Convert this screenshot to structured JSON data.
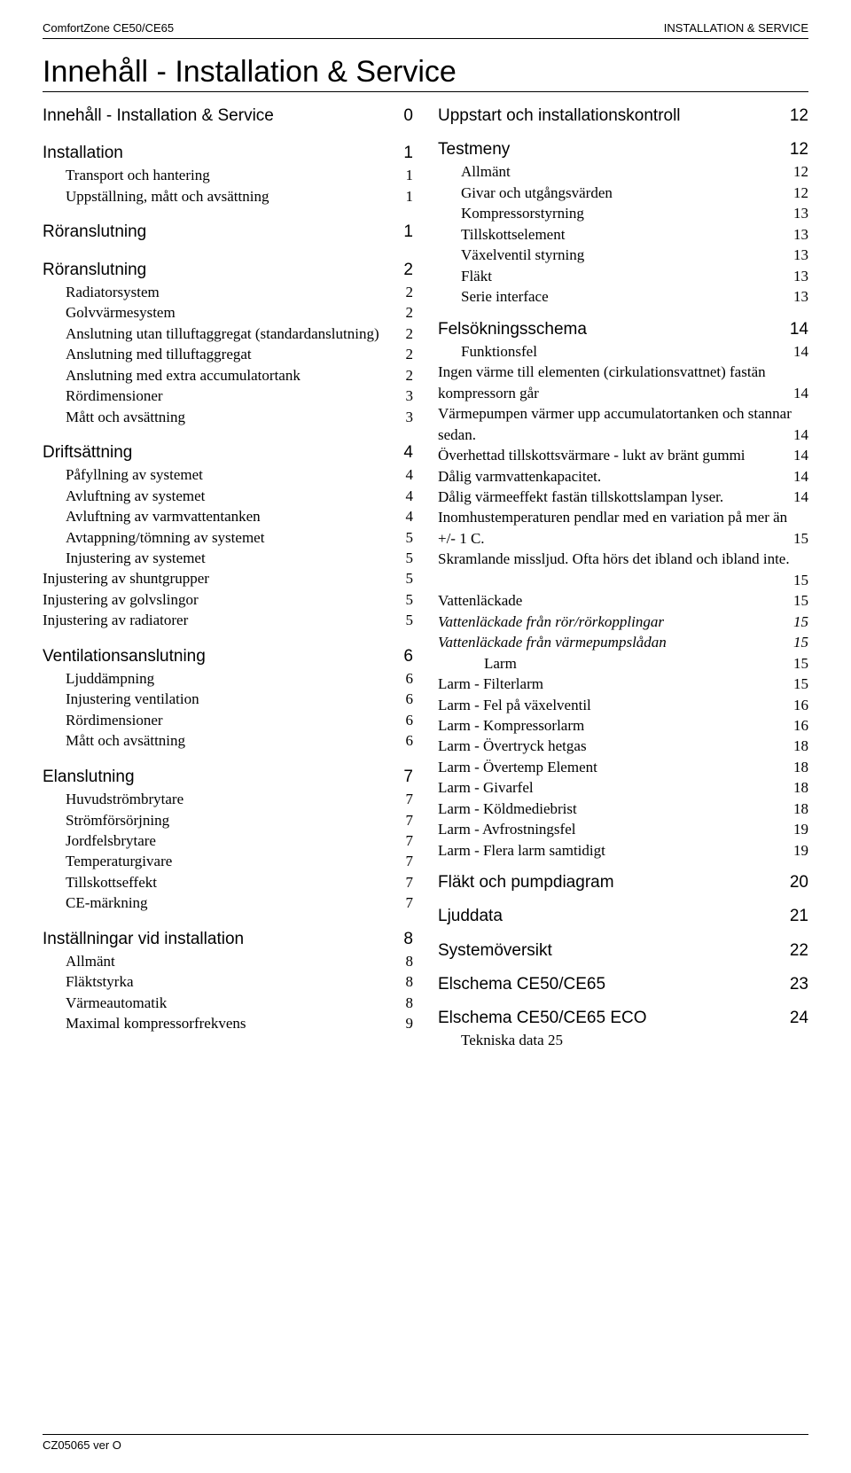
{
  "header": {
    "left": "ComfortZone CE50/CE65",
    "right": "INSTALLATION & SERVICE"
  },
  "title": "Innehåll - Installation & Service",
  "footer": "CZ05065 ver O",
  "left": [
    {
      "cls": "lvl1 first",
      "label": "Innehåll - Installation & Service",
      "num": "0"
    },
    {
      "cls": "lvl1",
      "label": "Installation",
      "num": "1"
    },
    {
      "cls": "lvl2",
      "label": "Transport och hantering",
      "num": "1"
    },
    {
      "cls": "lvl2",
      "label": "Uppställning, mått och avsättning",
      "num": "1"
    },
    {
      "cls": "lvl1",
      "label": "Röranslutning",
      "num": "1"
    },
    {
      "cls": "lvl1",
      "label": "Röranslutning",
      "num": "2"
    },
    {
      "cls": "lvl2",
      "label": "Radiatorsystem",
      "num": "2"
    },
    {
      "cls": "lvl2",
      "label": "Golvvärmesystem",
      "num": "2"
    },
    {
      "cls": "lvl2",
      "label": "Anslutning utan tilluftaggregat (standardanslutning)",
      "num": "2"
    },
    {
      "cls": "lvl2",
      "label": "Anslutning med tilluftaggregat",
      "num": "2"
    },
    {
      "cls": "lvl2",
      "label": "Anslutning med extra accumulatortank",
      "num": "2"
    },
    {
      "cls": "lvl2",
      "label": "Rördimensioner",
      "num": "3"
    },
    {
      "cls": "lvl2",
      "label": "Mått och avsättning",
      "num": "3"
    },
    {
      "cls": "lvl1",
      "label": "Driftsättning",
      "num": "4"
    },
    {
      "cls": "lvl2",
      "label": "Påfyllning av systemet",
      "num": "4"
    },
    {
      "cls": "lvl2",
      "label": "Avluftning av systemet",
      "num": "4"
    },
    {
      "cls": "lvl2",
      "label": "Avluftning av varmvattentanken",
      "num": "4"
    },
    {
      "cls": "lvl2",
      "label": "Avtappning/tömning av systemet",
      "num": "5"
    },
    {
      "cls": "lvl2",
      "label": "Injustering av systemet",
      "num": "5"
    },
    {
      "cls": "lvl1-5",
      "label": "Injustering av shuntgrupper",
      "num": "5"
    },
    {
      "cls": "lvl1-5",
      "label": "Injustering av golvslingor",
      "num": "5"
    },
    {
      "cls": "lvl1-5",
      "label": "Injustering av radiatorer",
      "num": "5"
    },
    {
      "cls": "lvl1",
      "label": "Ventilationsanslutning",
      "num": "6"
    },
    {
      "cls": "lvl2",
      "label": "Ljuddämpning",
      "num": "6"
    },
    {
      "cls": "lvl2",
      "label": "Injustering ventilation",
      "num": "6"
    },
    {
      "cls": "lvl2",
      "label": "Rördimensioner",
      "num": "6"
    },
    {
      "cls": "lvl2",
      "label": "Mått och avsättning",
      "num": "6"
    },
    {
      "cls": "lvl1",
      "label": "Elanslutning",
      "num": "7"
    },
    {
      "cls": "lvl2",
      "label": "Huvudströmbrytare",
      "num": "7"
    },
    {
      "cls": "lvl2",
      "label": "Strömförsörjning",
      "num": "7"
    },
    {
      "cls": "lvl2",
      "label": "Jordfelsbrytare",
      "num": "7"
    },
    {
      "cls": "lvl2",
      "label": "Temperaturgivare",
      "num": "7"
    },
    {
      "cls": "lvl2",
      "label": "Tillskottseffekt",
      "num": "7"
    },
    {
      "cls": "lvl2",
      "label": "CE-märkning",
      "num": "7"
    },
    {
      "cls": "lvl1",
      "label": "Inställningar vid installation",
      "num": "8"
    },
    {
      "cls": "lvl2",
      "label": "Allmänt",
      "num": "8"
    },
    {
      "cls": "lvl2",
      "label": "Fläktstyrka",
      "num": "8"
    },
    {
      "cls": "lvl2",
      "label": "Värmeautomatik",
      "num": "8"
    },
    {
      "cls": "lvl2",
      "label": "Maximal kompressorfrekvens",
      "num": "9"
    }
  ],
  "right": [
    {
      "type": "multi",
      "cls": "right-lvl1 first",
      "label": "Uppstart och installationskontroll",
      "num": "12"
    },
    {
      "type": "line",
      "cls": "right-lvl1",
      "label": "Testmeny",
      "num": "12"
    },
    {
      "type": "line",
      "cls": "lvl2",
      "label": "Allmänt",
      "num": "12"
    },
    {
      "type": "line",
      "cls": "lvl2",
      "label": "Givar och utgångsvärden",
      "num": "12"
    },
    {
      "type": "line",
      "cls": "lvl2",
      "label": "Kompressorstyrning",
      "num": "13"
    },
    {
      "type": "line",
      "cls": "lvl2",
      "label": "Tillskottselement",
      "num": "13"
    },
    {
      "type": "line",
      "cls": "lvl2",
      "label": "Växelventil styrning",
      "num": "13"
    },
    {
      "type": "line",
      "cls": "lvl2",
      "label": "Fläkt",
      "num": "13"
    },
    {
      "type": "line",
      "cls": "lvl2",
      "label": "Serie interface",
      "num": "13"
    },
    {
      "type": "line",
      "cls": "right-lvl1",
      "label": "Felsökningsschema",
      "num": "14"
    },
    {
      "type": "line",
      "cls": "lvl2",
      "label": "Funktionsfel",
      "num": "14"
    },
    {
      "type": "multi",
      "cls": "toc-multi",
      "label": "Ingen värme till elementen (cirkulationsvattnet) fastän kompressorn går",
      "num": "14"
    },
    {
      "type": "multi",
      "cls": "toc-multi",
      "label": "Värmepumpen värmer upp accumulatortanken och stannar sedan.",
      "num": "14"
    },
    {
      "type": "multi",
      "cls": "toc-multi",
      "label": "Överhettad tillskottsvärmare - lukt av bränt gummi",
      "num": "14"
    },
    {
      "type": "line",
      "cls": "lvl1-5",
      "label": "Dålig varmvattenkapacitet.",
      "num": "14"
    },
    {
      "type": "multi",
      "cls": "toc-multi",
      "label": "Dålig värmeeffekt fastän tillskottslampan lyser.",
      "num": "14"
    },
    {
      "type": "multi",
      "cls": "toc-multi",
      "label": "Inomhustemperaturen pendlar med en variation på mer än +/- 1 C.",
      "num": "15"
    },
    {
      "type": "multi",
      "cls": "toc-multi",
      "label": "Skramlande missljud. Ofta hörs det ibland och ibland inte.",
      "num": "15"
    },
    {
      "type": "line",
      "cls": "lvl1-5",
      "label": "Vattenläckade",
      "num": "15"
    },
    {
      "type": "line",
      "cls": "lvl1-5 italic",
      "label": "Vattenläckade från rör/rörkopplingar",
      "num": "15",
      "italic": true
    },
    {
      "type": "line",
      "cls": "lvl1-5 italic",
      "label": "Vattenläckade från värmepumpslådan",
      "num": "15",
      "italic": true
    },
    {
      "type": "line",
      "cls": "lvl3",
      "label": "Larm",
      "num": "15"
    },
    {
      "type": "line",
      "cls": "lvl1-5",
      "label": "Larm - Filterlarm",
      "num": "15"
    },
    {
      "type": "line",
      "cls": "lvl1-5",
      "label": "Larm - Fel på växelventil",
      "num": "16"
    },
    {
      "type": "line",
      "cls": "lvl1-5",
      "label": "Larm - Kompressorlarm",
      "num": "16"
    },
    {
      "type": "line",
      "cls": "lvl1-5",
      "label": "Larm - Övertryck hetgas",
      "num": "18"
    },
    {
      "type": "line",
      "cls": "lvl1-5",
      "label": "Larm - Övertemp Element",
      "num": "18"
    },
    {
      "type": "line",
      "cls": "lvl1-5",
      "label": "Larm - Givarfel",
      "num": "18"
    },
    {
      "type": "line",
      "cls": "lvl1-5",
      "label": "Larm - Köldmediebrist",
      "num": "18"
    },
    {
      "type": "line",
      "cls": "lvl1-5",
      "label": "Larm - Avfrostningsfel",
      "num": "19"
    },
    {
      "type": "line",
      "cls": "lvl1-5",
      "label": "Larm - Flera larm samtidigt",
      "num": "19"
    },
    {
      "type": "line",
      "cls": "right-lvl1",
      "label": "Fläkt och pumpdiagram",
      "num": "20"
    },
    {
      "type": "line",
      "cls": "right-lvl1",
      "label": "Ljuddata",
      "num": "21"
    },
    {
      "type": "line",
      "cls": "right-lvl1",
      "label": "Systemöversikt",
      "num": "22"
    },
    {
      "type": "line",
      "cls": "right-lvl1",
      "label": "Elschema CE50/CE65",
      "num": "23"
    },
    {
      "type": "line",
      "cls": "right-lvl1",
      "label": "Elschema CE50/CE65 ECO",
      "num": "24"
    },
    {
      "type": "line",
      "cls": "lvl2",
      "label": "Tekniska data    25",
      "num": ""
    }
  ]
}
